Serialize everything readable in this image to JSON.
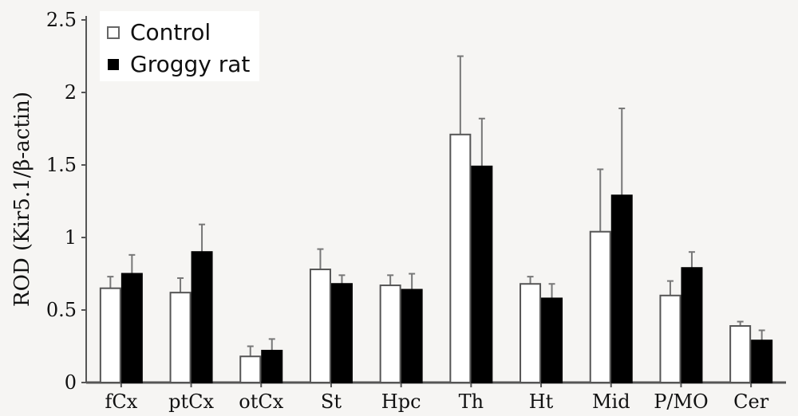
{
  "chart_data": {
    "type": "bar",
    "title": "",
    "xlabel": "",
    "ylabel": "ROD (Kir5.1/β-actin)",
    "ylim": [
      0,
      2.5
    ],
    "yticks": [
      {
        "value": 0,
        "label": "0"
      },
      {
        "value": 0.5,
        "label": "0.5"
      },
      {
        "value": 1,
        "label": "1"
      },
      {
        "value": 1.5,
        "label": "1.5"
      },
      {
        "value": 2,
        "label": "2"
      },
      {
        "value": 2.5,
        "label": "2.5"
      }
    ],
    "categories": [
      "fCx",
      "ptCx",
      "otCx",
      "St",
      "Hpc",
      "Th",
      "Ht",
      "Mid",
      "P/MO",
      "Cer"
    ],
    "series": [
      {
        "name": "Control",
        "fill": "#ffffff",
        "values": [
          0.65,
          0.62,
          0.18,
          0.78,
          0.67,
          1.71,
          0.68,
          1.04,
          0.6,
          0.39
        ],
        "errors": [
          0.08,
          0.1,
          0.07,
          0.14,
          0.07,
          0.54,
          0.05,
          0.43,
          0.1,
          0.03
        ]
      },
      {
        "name": "Groggy rat",
        "fill": "#000000",
        "values": [
          0.75,
          0.9,
          0.22,
          0.68,
          0.64,
          1.49,
          0.58,
          1.29,
          0.79,
          0.29
        ],
        "errors": [
          0.13,
          0.19,
          0.08,
          0.06,
          0.11,
          0.33,
          0.1,
          0.6,
          0.11,
          0.07
        ]
      }
    ],
    "legend": {
      "position": "top-left"
    },
    "grid": false
  }
}
